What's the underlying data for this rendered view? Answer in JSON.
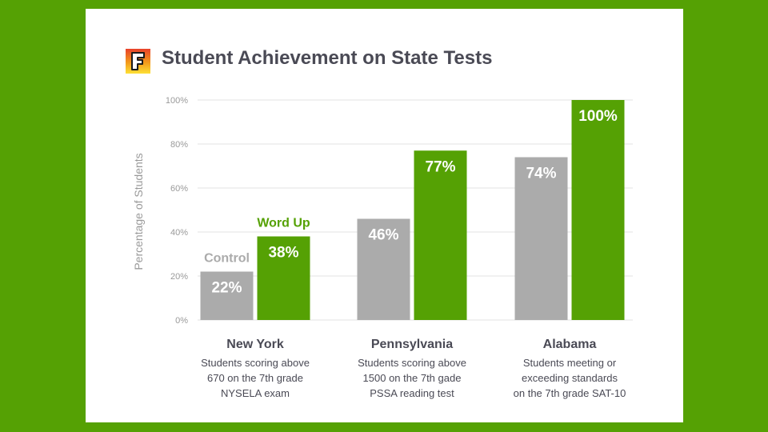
{
  "title": "Student Achievement on State Tests",
  "colors": {
    "background": "#55a104",
    "card": "#ffffff",
    "control": "#ababab",
    "word_up": "#55a104",
    "title": "#4a4a55",
    "axis_text": "#9a9a9a",
    "gridline": "#e3e3e3",
    "logo_red": "#e8412b",
    "logo_orange": "#f39a1b",
    "logo_yellow": "#fde036"
  },
  "logo": {
    "letter": "F",
    "icon": "logo-f-icon"
  },
  "chart_data": {
    "type": "bar",
    "title": "Student Achievement on State Tests",
    "ylabel": "Percentage of Students",
    "ylim": [
      0,
      100
    ],
    "yticks": [
      0,
      20,
      40,
      60,
      80,
      100
    ],
    "ytick_labels": [
      "0%",
      "20%",
      "40%",
      "60%",
      "80%",
      "100%"
    ],
    "grid": true,
    "categories": [
      "New York",
      "Pennsylvania",
      "Alabama"
    ],
    "category_descriptions": [
      [
        "Students scoring above",
        "670 on the 7th grade",
        "NYSELA exam"
      ],
      [
        "Students scoring above",
        "1500 on the 7th gade",
        "PSSA reading test"
      ],
      [
        "Students meeting or",
        "exceeding standards",
        "on the 7th grade SAT-10"
      ]
    ],
    "series": [
      {
        "name": "Control",
        "values": [
          22,
          46,
          74
        ],
        "labels": [
          "22%",
          "46%",
          "74%"
        ]
      },
      {
        "name": "Word Up",
        "values": [
          38,
          77,
          100
        ],
        "labels": [
          "38%",
          "77%",
          "100%"
        ]
      }
    ]
  }
}
